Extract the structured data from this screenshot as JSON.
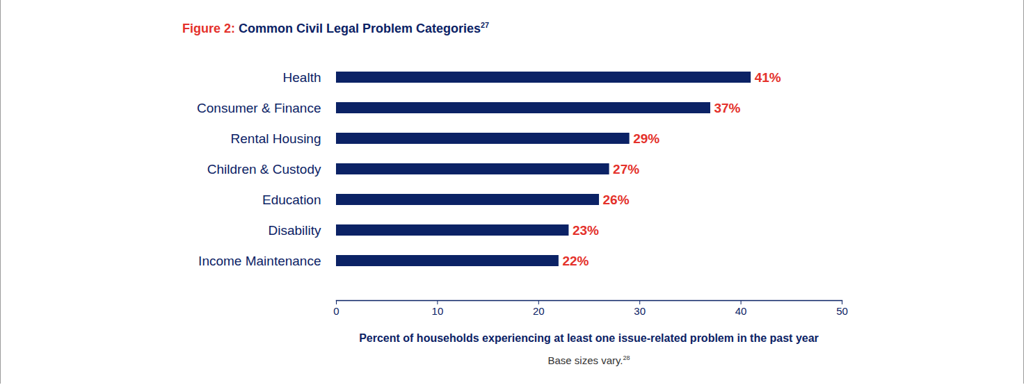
{
  "chart_data": {
    "type": "bar",
    "orientation": "horizontal",
    "title": "Figure 2: Common Civil Legal Problem Categories",
    "title_footnote": "27",
    "xlabel": "Percent of households experiencing at least one issue-related problem in the past year",
    "caption": "Base sizes vary.",
    "caption_footnote": "28",
    "categories": [
      "Health",
      "Consumer & Finance",
      "Rental Housing",
      "Children & Custody",
      "Education",
      "Disability",
      "Income Maintenance"
    ],
    "values": [
      41,
      37,
      29,
      27,
      26,
      23,
      22
    ],
    "value_labels": [
      "41%",
      "37%",
      "29%",
      "27%",
      "26%",
      "23%",
      "22%"
    ],
    "data_labels": true,
    "color": "#0b2265",
    "xlim": [
      0,
      50
    ],
    "xticks": [
      0,
      10,
      20,
      30,
      40,
      50
    ],
    "grid": false
  }
}
